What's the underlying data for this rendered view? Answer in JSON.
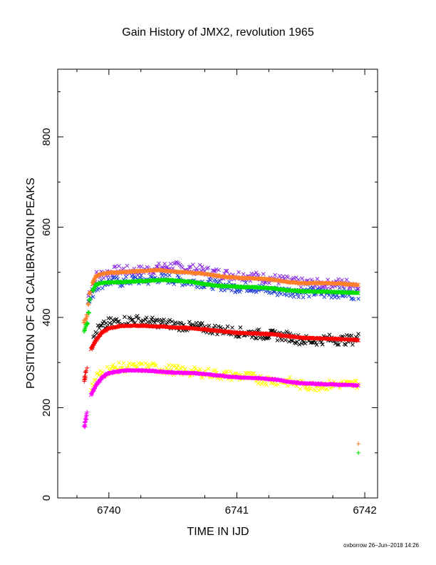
{
  "chart_data": {
    "type": "scatter",
    "title": "Gain History of JMX2, revolution 1965",
    "xlabel": "TIME IN IJD",
    "ylabel": "POSITION OF Cd CALIBRATION PEAKS",
    "xlim": [
      6739.6,
      6742.1
    ],
    "ylim": [
      0,
      950
    ],
    "xticks": [
      6740,
      6741,
      6742
    ],
    "yticks": [
      0,
      200,
      400,
      600,
      800
    ],
    "grid": false,
    "series": [
      {
        "marker": "x",
        "color": "#8a2be2",
        "kind": "raw",
        "x": [
          6739.84,
          6739.9,
          6740.0,
          6740.1,
          6740.2,
          6740.3,
          6740.4,
          6740.5,
          6740.6,
          6740.7,
          6740.8,
          6740.9,
          6741.0,
          6741.1,
          6741.2,
          6741.3,
          6741.4,
          6741.5,
          6741.6,
          6741.7,
          6741.8,
          6741.9,
          6741.95
        ],
        "y": [
          448,
          492,
          500,
          505,
          502,
          506,
          510,
          514,
          508,
          506,
          500,
          496,
          494,
          492,
          488,
          485,
          480,
          476,
          475,
          473,
          476,
          474,
          473
        ]
      },
      {
        "marker": "x",
        "color": "#1f3fd6",
        "kind": "raw",
        "x": [
          6739.84,
          6739.9,
          6740.0,
          6740.1,
          6740.2,
          6740.3,
          6740.4,
          6740.5,
          6740.6,
          6740.7,
          6740.8,
          6740.9,
          6741.0,
          6741.1,
          6741.2,
          6741.3,
          6741.4,
          6741.5,
          6741.6,
          6741.7,
          6741.8,
          6741.9,
          6741.95
        ],
        "y": [
          430,
          470,
          480,
          478,
          484,
          482,
          488,
          484,
          480,
          478,
          474,
          470,
          466,
          468,
          462,
          458,
          458,
          455,
          456,
          452,
          455,
          450,
          452
        ]
      },
      {
        "marker": "line",
        "color": "#ff7f2a",
        "kind": "fit",
        "x": [
          6739.87,
          6739.9,
          6739.95,
          6740.0,
          6740.1,
          6740.2,
          6740.3,
          6740.4,
          6740.5,
          6740.6,
          6740.7,
          6740.8,
          6740.9,
          6741.0,
          6741.1,
          6741.2,
          6741.3,
          6741.4,
          6741.5,
          6741.6,
          6741.7,
          6741.8,
          6741.9,
          6741.95
        ],
        "y": [
          475,
          492,
          497,
          499,
          500,
          502,
          503,
          505,
          502,
          500,
          498,
          494,
          490,
          488,
          487,
          486,
          483,
          478,
          476,
          476,
          476,
          475,
          473,
          472
        ]
      },
      {
        "marker": "line",
        "color": "#00e000",
        "kind": "fit",
        "x": [
          6739.87,
          6739.9,
          6739.95,
          6740.0,
          6740.1,
          6740.2,
          6740.3,
          6740.4,
          6740.5,
          6740.6,
          6740.7,
          6740.8,
          6740.9,
          6741.0,
          6741.1,
          6741.2,
          6741.3,
          6741.4,
          6741.5,
          6741.6,
          6741.7,
          6741.8,
          6741.9,
          6741.95
        ],
        "y": [
          458,
          473,
          477,
          478,
          478,
          480,
          481,
          483,
          482,
          480,
          476,
          472,
          469,
          468,
          467,
          466,
          464,
          460,
          458,
          457,
          457,
          456,
          455,
          455
        ]
      },
      {
        "marker": "x",
        "color": "#000000",
        "kind": "raw",
        "x": [
          6739.87,
          6739.9,
          6740.0,
          6740.1,
          6740.2,
          6740.3,
          6740.4,
          6740.5,
          6740.6,
          6740.7,
          6740.8,
          6740.9,
          6741.0,
          6741.1,
          6741.2,
          6741.3,
          6741.4,
          6741.5,
          6741.6,
          6741.7,
          6741.8,
          6741.9,
          6741.95
        ],
        "y": [
          340,
          370,
          388,
          392,
          395,
          390,
          388,
          384,
          380,
          378,
          374,
          372,
          368,
          365,
          362,
          360,
          358,
          350,
          348,
          352,
          350,
          350,
          355
        ]
      },
      {
        "marker": "line",
        "color": "#ff0000",
        "kind": "fit",
        "x": [
          6739.86,
          6739.9,
          6739.95,
          6740.0,
          6740.1,
          6740.2,
          6740.3,
          6740.4,
          6740.5,
          6740.6,
          6740.7,
          6740.8,
          6740.9,
          6741.0,
          6741.1,
          6741.2,
          6741.3,
          6741.4,
          6741.5,
          6741.6,
          6741.7,
          6741.8,
          6741.9,
          6741.95
        ],
        "y": [
          330,
          350,
          368,
          376,
          381,
          382,
          381,
          380,
          378,
          377,
          375,
          372,
          369,
          366,
          365,
          364,
          362,
          358,
          355,
          354,
          353,
          352,
          351,
          350
        ]
      },
      {
        "marker": "x",
        "color": "#ffff00",
        "kind": "raw",
        "x": [
          6739.86,
          6739.9,
          6740.0,
          6740.1,
          6740.2,
          6740.3,
          6740.4,
          6740.5,
          6740.6,
          6740.7,
          6740.8,
          6740.9,
          6741.0,
          6741.1,
          6741.2,
          6741.3,
          6741.4,
          6741.5,
          6741.6,
          6741.7,
          6741.8,
          6741.9,
          6741.95
        ],
        "y": [
          240,
          268,
          285,
          290,
          288,
          290,
          286,
          284,
          280,
          278,
          276,
          272,
          270,
          268,
          262,
          260,
          258,
          250,
          248,
          250,
          252,
          250,
          255
        ]
      },
      {
        "marker": "line",
        "color": "#ff00ff",
        "kind": "fit",
        "x": [
          6739.86,
          6739.9,
          6739.95,
          6740.0,
          6740.1,
          6740.2,
          6740.3,
          6740.4,
          6740.5,
          6740.6,
          6740.7,
          6740.8,
          6740.9,
          6741.0,
          6741.1,
          6741.2,
          6741.3,
          6741.4,
          6741.5,
          6741.6,
          6741.7,
          6741.8,
          6741.9,
          6741.95
        ],
        "y": [
          228,
          250,
          268,
          277,
          282,
          283,
          282,
          280,
          278,
          277,
          276,
          273,
          270,
          267,
          266,
          265,
          262,
          258,
          254,
          253,
          252,
          251,
          250,
          249
        ]
      },
      {
        "marker": "+",
        "color": "#ff7f2a",
        "kind": "early",
        "x": [
          6739.81,
          6739.82,
          6739.83,
          6739.84,
          6739.85,
          6741.95
        ],
        "y": [
          390,
          398,
          405,
          430,
          455,
          120
        ]
      },
      {
        "marker": "+",
        "color": "#00e000",
        "kind": "early",
        "x": [
          6739.81,
          6739.82,
          6739.83,
          6739.84,
          6739.85,
          6741.95
        ],
        "y": [
          372,
          380,
          388,
          410,
          440,
          100
        ]
      },
      {
        "marker": "+",
        "color": "#ff0000",
        "kind": "early",
        "x": [
          6739.81,
          6739.815,
          6739.82,
          6739.83
        ],
        "y": [
          262,
          270,
          278,
          288
        ]
      },
      {
        "marker": "+",
        "color": "#ff00ff",
        "kind": "early",
        "x": [
          6739.81,
          6739.815,
          6739.82,
          6739.825,
          6739.83
        ],
        "y": [
          160,
          168,
          175,
          183,
          190
        ]
      }
    ]
  },
  "footer": {
    "text": "oxborrow 26–Jun–2018 14:26"
  }
}
